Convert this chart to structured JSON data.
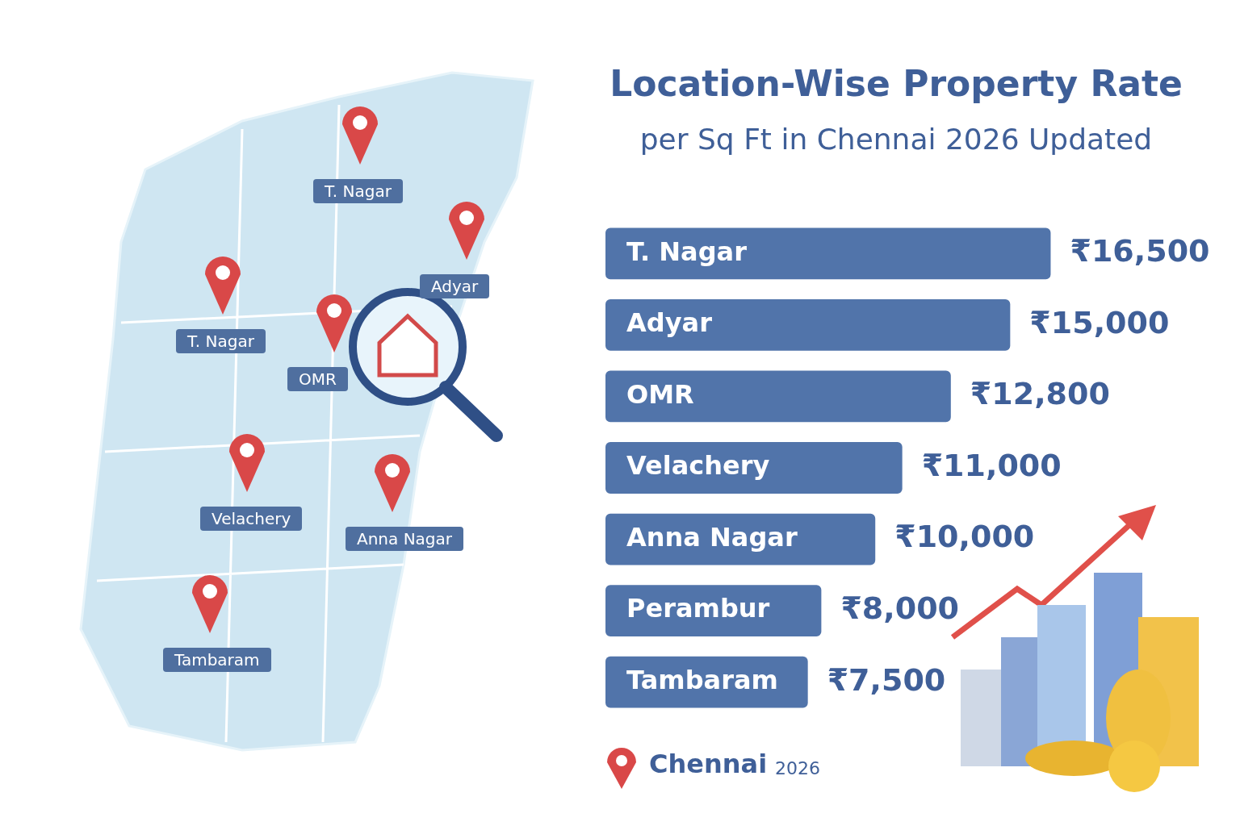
{
  "chart_data": {
    "type": "bar",
    "orientation": "horizontal",
    "title": "Location-Wise Property Rate",
    "subtitle": "per Sq Ft in Chennai 2026 Updated",
    "categories": [
      "T. Nagar",
      "Adyar",
      "OMR",
      "Velachery",
      "Anna Nagar",
      "Perambur",
      "Tambaram"
    ],
    "values": [
      16500,
      15000,
      12800,
      11000,
      10000,
      8000,
      7500
    ],
    "value_labels": [
      "₹16,500",
      "₹15,000",
      "₹12,800",
      "₹11,000",
      "₹10,000",
      "₹8,000",
      "₹7,500"
    ],
    "color": "#5174aa",
    "tick_labels": false,
    "annotations": [
      "T. Nagar",
      "Adyar",
      "T. Nagar",
      "OMR",
      "Velachery",
      "Anna Nagar",
      "Tambaram",
      "Chennai",
      "2026"
    ]
  }
}
